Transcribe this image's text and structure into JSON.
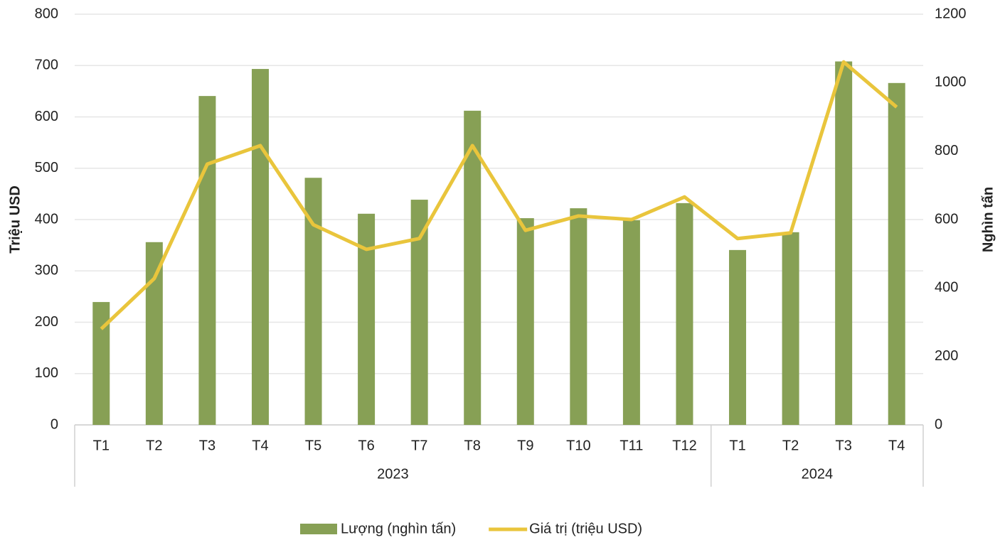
{
  "chart_data": {
    "type": "bar+line",
    "categories": [
      "T1",
      "T2",
      "T3",
      "T4",
      "T5",
      "T6",
      "T7",
      "T8",
      "T9",
      "T10",
      "T11",
      "T12",
      "T1",
      "T2",
      "T3",
      "T4"
    ],
    "groups": [
      {
        "label": "2023",
        "span": 12
      },
      {
        "label": "2024",
        "span": 4
      }
    ],
    "series": [
      {
        "name": "Lượng (nghìn tấn)",
        "type": "bar",
        "axis": "y2",
        "color": "#87a055",
        "values": [
          359,
          534,
          961,
          1040,
          722,
          617,
          658,
          918,
          604,
          633,
          598,
          648,
          511,
          563,
          1062,
          999
        ]
      },
      {
        "name": "Giá trị (triệu USD)",
        "type": "line",
        "axis": "y",
        "color": "#e9c53c",
        "values": [
          187,
          285,
          508,
          544,
          390,
          342,
          363,
          544,
          379,
          407,
          400,
          444,
          363,
          374,
          707,
          619
        ]
      }
    ],
    "ylabel": "Triệu USD",
    "y2label": "Nghìn tấn",
    "ylim": [
      0,
      800
    ],
    "yticks": [
      0,
      100,
      200,
      300,
      400,
      500,
      600,
      700,
      800
    ],
    "y2lim": [
      0,
      1200
    ],
    "y2ticks": [
      0,
      200,
      400,
      600,
      800,
      1000,
      1200
    ],
    "grid": true,
    "legend": "bottom"
  }
}
